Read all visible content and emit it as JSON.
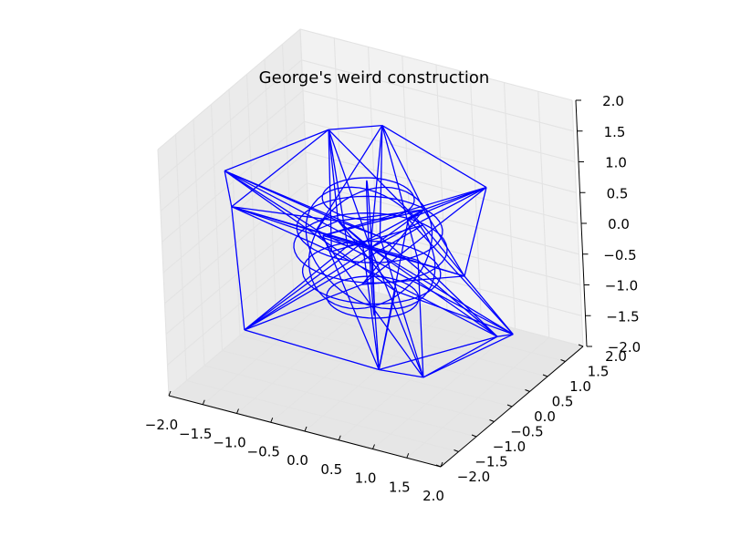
{
  "chart_data": {
    "type": "wireframe-3d",
    "title": "George's weird construction",
    "x_axis": {
      "ticks": [
        -2.0,
        -1.5,
        -1.0,
        -0.5,
        0.0,
        0.5,
        1.0,
        1.5,
        2.0
      ],
      "tick_labels": [
        "−2.0",
        "−1.5",
        "−1.0",
        "−0.5",
        "0.0",
        "0.5",
        "1.0",
        "1.5",
        "2.0"
      ],
      "range": [
        -2.0,
        2.0
      ]
    },
    "y_axis": {
      "ticks": [
        -2.0,
        -1.5,
        -1.0,
        -0.5,
        0.0,
        0.5,
        1.0,
        1.5,
        2.0
      ],
      "tick_labels": [
        "−2.0",
        "−1.5",
        "−1.0",
        "−0.5",
        "0.0",
        "0.5",
        "1.0",
        "1.5",
        "2.0"
      ],
      "range": [
        -2.0,
        2.0
      ]
    },
    "z_axis": {
      "ticks": [
        -2.0,
        -1.5,
        -1.0,
        -0.5,
        0.0,
        0.5,
        1.0,
        1.5,
        2.0
      ],
      "tick_labels": [
        "−2.0",
        "−1.5",
        "−1.0",
        "−0.5",
        "0.0",
        "0.5",
        "1.0",
        "1.5",
        "2.0"
      ],
      "range": [
        -2.0,
        2.0
      ]
    },
    "grid": true,
    "line_color": "#0000ff",
    "series": [
      {
        "spikes": [
          [
            0.2,
            0.1,
            2.0
          ],
          [
            -0.6,
            0.1,
            1.7
          ],
          [
            1.6,
            0.3,
            1.3
          ],
          [
            -1.9,
            -0.4,
            0.9
          ],
          [
            -1.6,
            -0.8,
            0.6
          ],
          [
            1.6,
            -0.4,
            0.2
          ],
          [
            1.9,
            0.3,
            -1.0
          ],
          [
            1.5,
            0.6,
            -1.3
          ],
          [
            -1.6,
            -0.6,
            -1.5
          ],
          [
            0.1,
            -0.1,
            -1.9
          ],
          [
            0.7,
            0.0,
            -1.9
          ],
          [
            -0.5,
            0.7,
            -0.4
          ],
          [
            0.6,
            0.4,
            0.6
          ],
          [
            -0.3,
            -0.3,
            0.5
          ]
        ],
        "rings": [
          [
            0.0,
            0.0,
            0.3,
            0.95
          ],
          [
            0.0,
            0.0,
            0.0,
            1.0
          ],
          [
            0.0,
            0.0,
            -0.4,
            0.9
          ],
          [
            0.0,
            0.0,
            0.8,
            0.6
          ],
          [
            0.0,
            0.0,
            -0.8,
            0.6
          ]
        ]
      }
    ]
  }
}
